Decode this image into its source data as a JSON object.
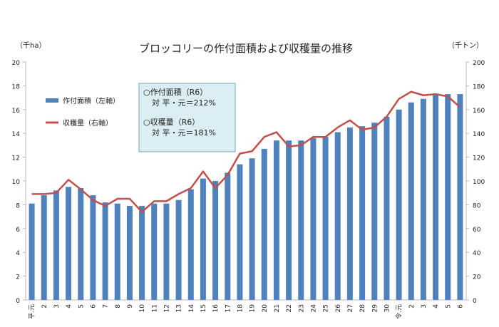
{
  "chart_data": {
    "type": "bar+line",
    "title": "ブロッコリーの作付面積および収穫量の推移",
    "ylabel_left": "（千ha）",
    "ylabel_right": "（千トン）",
    "ylim_left": [
      0,
      20
    ],
    "ylim_right": [
      0,
      200
    ],
    "yticks_left": [
      "0",
      "2",
      "4",
      "6",
      "8",
      "10",
      "12",
      "14",
      "16",
      "18",
      "20"
    ],
    "yticks_right": [
      "0",
      "20",
      "40",
      "60",
      "80",
      "100",
      "120",
      "140",
      "160",
      "180",
      "200"
    ],
    "categories": [
      "平.元",
      "2",
      "3",
      "4",
      "5",
      "6",
      "7",
      "8",
      "9",
      "10",
      "11",
      "12",
      "13",
      "14",
      "15",
      "16",
      "17",
      "18",
      "19",
      "20",
      "21",
      "22",
      "23",
      "24",
      "25",
      "26",
      "27",
      "28",
      "29",
      "30",
      "令.元",
      "2",
      "3",
      "4",
      "5",
      "6"
    ],
    "series": [
      {
        "name": "作付面積（左軸）",
        "type": "bar",
        "axis": "left",
        "color": "#4F81BD",
        "values": [
          8.1,
          8.8,
          9.2,
          9.5,
          9.4,
          8.8,
          8.2,
          8.1,
          7.9,
          7.9,
          8.1,
          8.1,
          8.4,
          9.3,
          10.2,
          10.0,
          10.7,
          11.4,
          11.9,
          12.7,
          13.4,
          13.4,
          13.4,
          13.6,
          13.7,
          14.1,
          14.5,
          14.6,
          14.9,
          15.4,
          16.0,
          16.6,
          16.9,
          17.3,
          17.3,
          17.3
        ]
      },
      {
        "name": "収穫量（右軸）",
        "type": "line",
        "axis": "right",
        "color": "#C0504D",
        "values": [
          89,
          89,
          90,
          101,
          93,
          84,
          79,
          85,
          85,
          74,
          83,
          83,
          89,
          94,
          108,
          94,
          105,
          123,
          125,
          137,
          141,
          129,
          130,
          137,
          137,
          145,
          151,
          143,
          145,
          154,
          169,
          175,
          172,
          173,
          171,
          162
        ]
      }
    ],
    "annotation": {
      "line1": "○作付面積（R6）",
      "line2": "対 平・元＝212%",
      "line3": "○収穫量（R6）",
      "line4": "対 平・元＝181%"
    }
  }
}
